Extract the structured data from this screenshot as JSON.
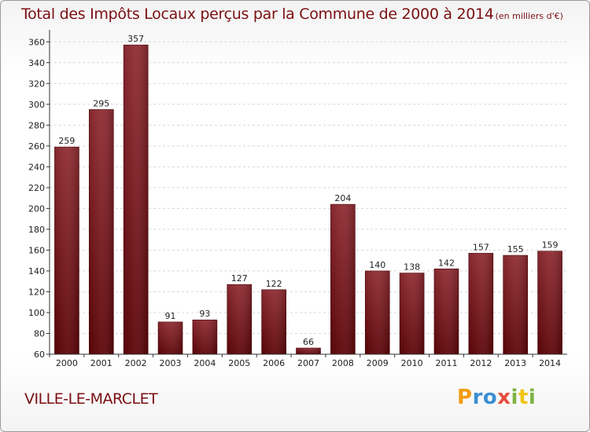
{
  "chart_data": {
    "type": "bar",
    "title": "Total des Impôts Locaux perçus par la Commune de 2000 à 2014",
    "unit_label": "(en milliers d'€)",
    "categories": [
      "2000",
      "2001",
      "2002",
      "2003",
      "2004",
      "2005",
      "2006",
      "2007",
      "2008",
      "2009",
      "2010",
      "2011",
      "2012",
      "2013",
      "2014"
    ],
    "values": [
      259,
      295,
      357,
      91,
      93,
      127,
      122,
      66,
      204,
      140,
      138,
      142,
      157,
      155,
      159
    ],
    "ylim": [
      60,
      370
    ],
    "yticks": [
      60,
      80,
      100,
      120,
      140,
      160,
      180,
      200,
      220,
      240,
      260,
      280,
      300,
      320,
      340,
      360
    ],
    "grid": true,
    "bar_color": "#7a1318"
  },
  "commune": "VILLE-LE-MARCLET",
  "logo": {
    "letters": [
      "P",
      "r",
      "o",
      "x",
      "i",
      "t",
      "i"
    ],
    "colors": [
      "#f39c12",
      "#3b8fd4",
      "#3b8fd4",
      "#e74c3c",
      "#7cb342",
      "#f1c40f",
      "#7cb342"
    ]
  }
}
